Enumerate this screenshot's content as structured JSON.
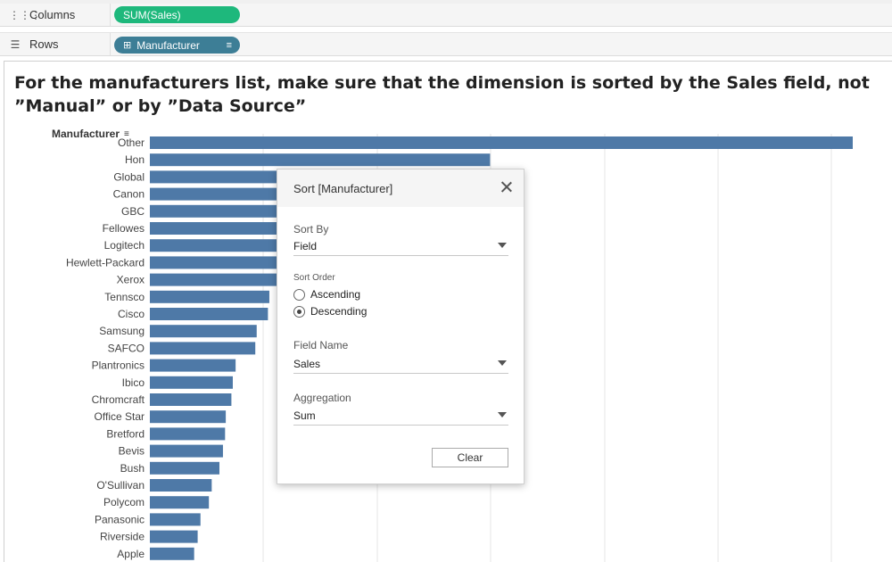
{
  "shelves": {
    "columns": {
      "label": "Columns",
      "icon": "columns-icon",
      "pill": "SUM(Sales)",
      "pill_color": "#1eb87c"
    },
    "rows": {
      "label": "Rows",
      "icon": "rows-icon",
      "pill": "Manufacturer",
      "pill_color": "#3d7e96"
    }
  },
  "title": "For the manufacturers list, make sure that the dimension is sorted by the Sales field, not ”Manual” or by ”Data Source”",
  "row_header": "Manufacturer",
  "chart_data": {
    "type": "bar",
    "orientation": "horizontal",
    "bar_color": "#4e79a7",
    "categories": [
      "Other",
      "Hon",
      "Global",
      "Canon",
      "GBC",
      "Fellowes",
      "Logitech",
      "Hewlett-Packard",
      "Xerox",
      "Tennsco",
      "Cisco",
      "Samsung",
      "SAFCO",
      "Plantronics",
      "Ibico",
      "Chromcraft",
      "Office Star",
      "Bretford",
      "Bevis",
      "Bush",
      "O'Sullivan",
      "Polycom",
      "Panasonic",
      "Riverside",
      "Apple"
    ],
    "values": [
      1000,
      484,
      400,
      390,
      370,
      360,
      350,
      345,
      340,
      170,
      168,
      152,
      150,
      122,
      118,
      116,
      108,
      107,
      104,
      99,
      88,
      84,
      72,
      68,
      63
    ],
    "grid": true
  },
  "dialog": {
    "title": "Sort [Manufacturer]",
    "sort_by_label": "Sort By",
    "sort_by_value": "Field",
    "sort_order_label": "Sort Order",
    "ascending_label": "Ascending",
    "descending_label": "Descending",
    "selected_order": "Descending",
    "field_name_label": "Field Name",
    "field_name_value": "Sales",
    "aggregation_label": "Aggregation",
    "aggregation_value": "Sum",
    "clear_label": "Clear"
  }
}
